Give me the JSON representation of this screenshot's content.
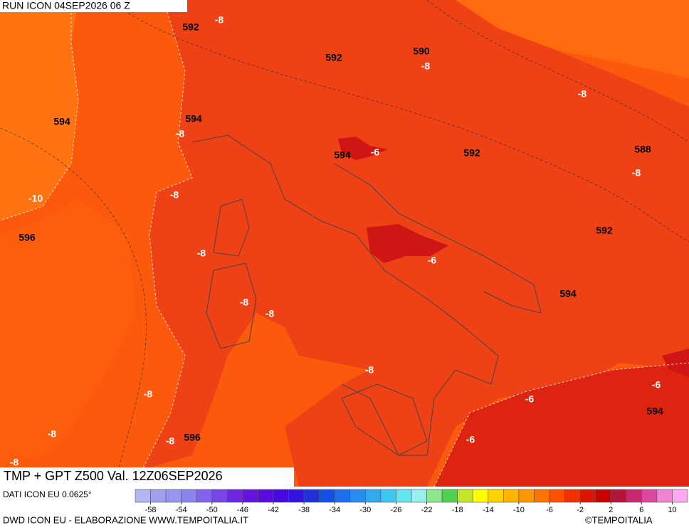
{
  "header": {
    "run": "RUN ICON 04SEP2026 06 Z"
  },
  "title": "TMP + GPT Z500 Val. 12Z06SEP2026",
  "source": "DATI ICON EU 0.0625°",
  "credit": "DWD ICON EU - ELABORAZIONE WWW.TEMPOITALIA.IT",
  "logo": "©TEMPOITALIA",
  "map": {
    "labels": [
      "592",
      "-8",
      "592",
      "590",
      "-8",
      "-8",
      "594",
      "594",
      "-8",
      "594",
      "-6",
      "592",
      "588",
      "-8",
      "-8",
      "-10",
      "596",
      "592",
      "-8",
      "-6",
      "594",
      "-8",
      "-8",
      "-8",
      "-6",
      "-8",
      "-6",
      "594",
      "596",
      "-8",
      "-8",
      "-6",
      "-8"
    ]
  },
  "colorbar": {
    "lim": [
      -60,
      12
    ],
    "ticks": [
      -58,
      -54,
      -50,
      -46,
      -42,
      -38,
      -34,
      -30,
      -26,
      -22,
      -18,
      -14,
      -10,
      -6,
      -2,
      2,
      6,
      10
    ],
    "colors": [
      "#b4b4f0",
      "#a0a0ec",
      "#9696f0",
      "#8c82f0",
      "#8264ec",
      "#7846e6",
      "#6e28e0",
      "#6414dc",
      "#5a0adc",
      "#460ae0",
      "#3214dc",
      "#1e32dc",
      "#1450e6",
      "#1e6ef0",
      "#288cf0",
      "#32aaf0",
      "#3cc8f0",
      "#64e6f0",
      "#96f0f0",
      "#8ce68c",
      "#50d250",
      "#c8e628",
      "#ffff00",
      "#ffd200",
      "#ffb400",
      "#ff9600",
      "#ff7300",
      "#ff5000",
      "#f03200",
      "#dc1400",
      "#c80000",
      "#b4143c",
      "#c8286e",
      "#dc46a0",
      "#f082d2",
      "#ffaaf0"
    ]
  }
}
